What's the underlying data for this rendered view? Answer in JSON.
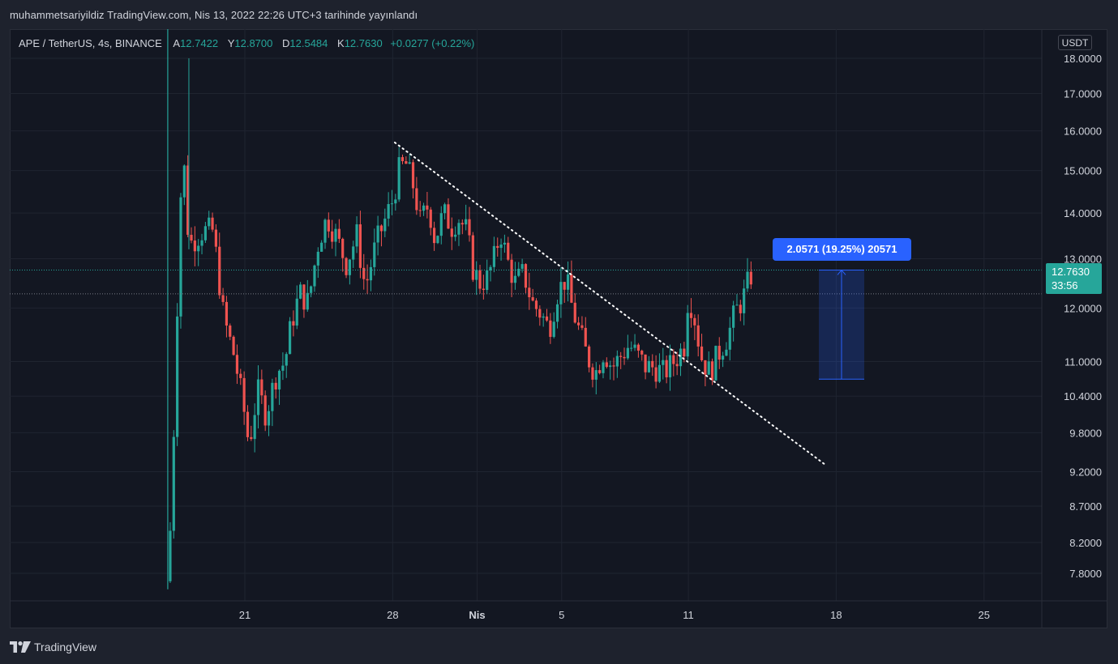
{
  "header": {
    "published_text": "muhammetsariyildiz TradingView.com, Nis 13, 2022 22:26 UTC+3 tarihinde yayınlandı"
  },
  "legend": {
    "symbol": "APE / TetherUS, 4s, BINANCE",
    "open_label": "A",
    "open": "12.7422",
    "high_label": "Y",
    "high": "12.8700",
    "low_label": "D",
    "low": "12.5484",
    "close_label": "K",
    "close": "12.7630",
    "change": "+0.0277 (+0.22%)"
  },
  "currency_button": "USDT",
  "price_tag": {
    "price": "12.7630",
    "countdown": "33:56"
  },
  "measure": {
    "label": "2.0571 (19.25%) 20571",
    "from_price": 10.69,
    "to_price": 12.763
  },
  "footer": {
    "brand": "TradingView"
  },
  "colors": {
    "up": "#26a69a",
    "down": "#ef5350",
    "measure": "#2962ff",
    "background": "#131722",
    "grid": "#1f2430",
    "text": "#d1d4dc"
  },
  "chart_data": {
    "type": "candlestick",
    "scale": "log",
    "y_ticks": [
      "18.0000",
      "17.0000",
      "16.0000",
      "15.0000",
      "14.0000",
      "13.0000",
      "12.0000",
      "11.0000",
      "10.4000",
      "9.8000",
      "9.2000",
      "8.7000",
      "8.2000",
      "7.8000"
    ],
    "x_ticks": [
      {
        "label": "21",
        "day": 21
      },
      {
        "label": "28",
        "day": 28
      },
      {
        "label": "Nis",
        "day": 32
      },
      {
        "label": "5",
        "day": 36
      },
      {
        "label": "11",
        "day": 42
      },
      {
        "label": "18",
        "day": 49
      },
      {
        "label": "25",
        "day": 56
      }
    ],
    "date_axis": "day of March 2022 (Nis 1 = 32)",
    "last_price": 12.763,
    "secondary_line_price": 12.28,
    "trendline": {
      "from": {
        "day": 28.1,
        "price": 15.7
      },
      "to": {
        "day": 48.5,
        "price": 9.3
      }
    },
    "anchors": [
      [
        17.3,
        7.7
      ],
      [
        17.5,
        8.5
      ],
      [
        17.75,
        11.2
      ],
      [
        17.9,
        14.0
      ],
      [
        18.1,
        15.3
      ],
      [
        18.35,
        13.3
      ],
      [
        19.0,
        13.6
      ],
      [
        19.5,
        13.6
      ],
      [
        20.0,
        11.8
      ],
      [
        20.5,
        11.1
      ],
      [
        20.9,
        10.3
      ],
      [
        21.2,
        9.6
      ],
      [
        21.6,
        10.5
      ],
      [
        22.0,
        10.1
      ],
      [
        22.5,
        10.8
      ],
      [
        22.9,
        11.0
      ],
      [
        23.2,
        11.7
      ],
      [
        23.6,
        12.3
      ],
      [
        24.0,
        12.1
      ],
      [
        24.5,
        13.4
      ],
      [
        24.9,
        13.9
      ],
      [
        25.3,
        13.5
      ],
      [
        25.8,
        12.9
      ],
      [
        26.3,
        13.5
      ],
      [
        26.7,
        12.4
      ],
      [
        27.2,
        13.3
      ],
      [
        27.6,
        13.8
      ],
      [
        28.0,
        14.3
      ],
      [
        28.3,
        15.0
      ],
      [
        28.6,
        15.2
      ],
      [
        29.0,
        14.6
      ],
      [
        29.3,
        13.8
      ],
      [
        29.7,
        14.2
      ],
      [
        30.0,
        13.4
      ],
      [
        30.4,
        14.0
      ],
      [
        30.8,
        13.7
      ],
      [
        31.1,
        13.9
      ],
      [
        31.5,
        13.6
      ],
      [
        31.8,
        12.8
      ],
      [
        32.1,
        12.5
      ],
      [
        32.5,
        12.6
      ],
      [
        32.8,
        13.0
      ],
      [
        33.1,
        13.6
      ],
      [
        33.4,
        13.0
      ],
      [
        33.8,
        12.5
      ],
      [
        34.2,
        12.7
      ],
      [
        34.6,
        12.1
      ],
      [
        35.0,
        11.9
      ],
      [
        35.4,
        11.6
      ],
      [
        35.8,
        12.3
      ],
      [
        36.2,
        12.6
      ],
      [
        36.5,
        12.0
      ],
      [
        36.8,
        11.6
      ],
      [
        37.2,
        11.1
      ],
      [
        37.6,
        10.8
      ],
      [
        38.0,
        11.2
      ],
      [
        38.4,
        10.9
      ],
      [
        38.8,
        11.1
      ],
      [
        39.2,
        11.3
      ],
      [
        39.6,
        11.1
      ],
      [
        40.0,
        10.9
      ],
      [
        40.4,
        10.9
      ],
      [
        40.8,
        10.8
      ],
      [
        41.1,
        10.9
      ],
      [
        41.5,
        11.1
      ],
      [
        41.8,
        11.3
      ],
      [
        42.0,
        12.3
      ],
      [
        42.3,
        11.8
      ],
      [
        42.6,
        11.1
      ],
      [
        43.0,
        10.8
      ],
      [
        43.5,
        11.2
      ],
      [
        43.9,
        11.5
      ],
      [
        44.2,
        11.9
      ],
      [
        44.6,
        12.2
      ],
      [
        44.9,
        12.6
      ],
      [
        45.1,
        12.76
      ]
    ]
  }
}
